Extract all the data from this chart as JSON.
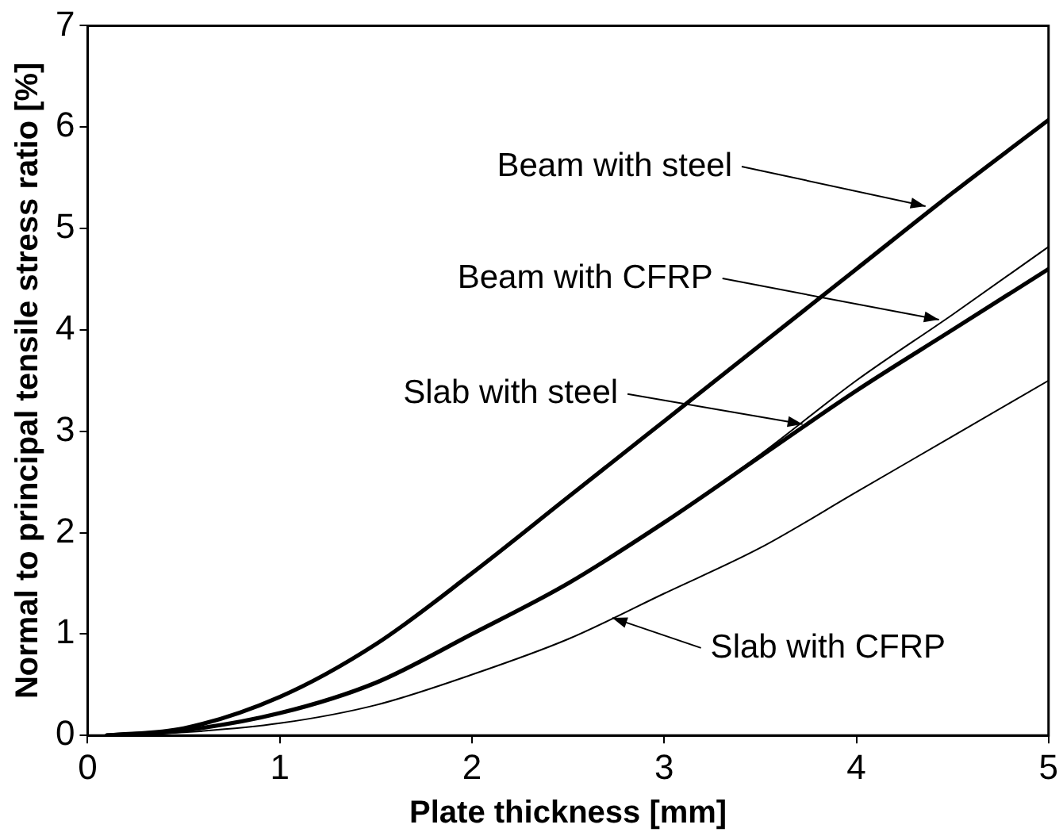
{
  "chart_data": {
    "type": "line",
    "xlabel": "Plate thickness [mm]",
    "ylabel": "Normal to principal tensile stress ratio [%]",
    "xlim": [
      0,
      5
    ],
    "ylim": [
      0,
      7
    ],
    "xticks": [
      0,
      1,
      2,
      3,
      4,
      5
    ],
    "yticks": [
      0,
      1,
      2,
      3,
      4,
      5,
      6,
      7
    ],
    "grid": false,
    "legend": false,
    "marker": "none",
    "line_style": "solid",
    "series": [
      {
        "color": "#000000",
        "x": [
          0.1,
          0.5,
          1,
          1.5,
          2,
          2.5,
          3,
          3.5,
          4,
          4.5,
          5
        ],
        "values": [
          0,
          0.07,
          0.38,
          0.9,
          1.6,
          2.35,
          3.1,
          3.85,
          4.6,
          5.35,
          6.07
        ]
      },
      {
        "color": "#000000",
        "x": [
          0.1,
          0.5,
          1,
          1.5,
          2,
          2.5,
          3,
          3.5,
          4,
          4.5,
          5
        ],
        "values": [
          0,
          0.05,
          0.22,
          0.52,
          1,
          1.5,
          2.1,
          2.75,
          3.4,
          4,
          4.6
        ]
      },
      {
        "color": "#000000",
        "x": [
          0.1,
          0.5,
          1,
          1.5,
          2,
          2.5,
          3,
          3.5,
          4,
          4.5,
          5
        ],
        "values": [
          0,
          0.05,
          0.22,
          0.52,
          1,
          1.5,
          2.1,
          2.77,
          3.5,
          4.15,
          4.82
        ]
      },
      {
        "color": "#000000",
        "x": [
          0.1,
          0.5,
          1,
          1.5,
          2,
          2.5,
          3,
          3.5,
          4,
          4.5,
          5
        ],
        "values": [
          0,
          0.03,
          0.12,
          0.3,
          0.6,
          0.95,
          1.4,
          1.85,
          2.4,
          2.95,
          3.5
        ]
      }
    ],
    "annotations": [
      {
        "text": "Beam with steel",
        "x": 4.36,
        "y": 5.22
      },
      {
        "text": "Beam with CFRP",
        "x": 4.43,
        "y": 4.1
      },
      {
        "text": "Slab with steel",
        "x": 3.72,
        "y": 3.07
      },
      {
        "text": "Slab with CFRP",
        "x": 2.73,
        "y": 1.16
      }
    ]
  }
}
